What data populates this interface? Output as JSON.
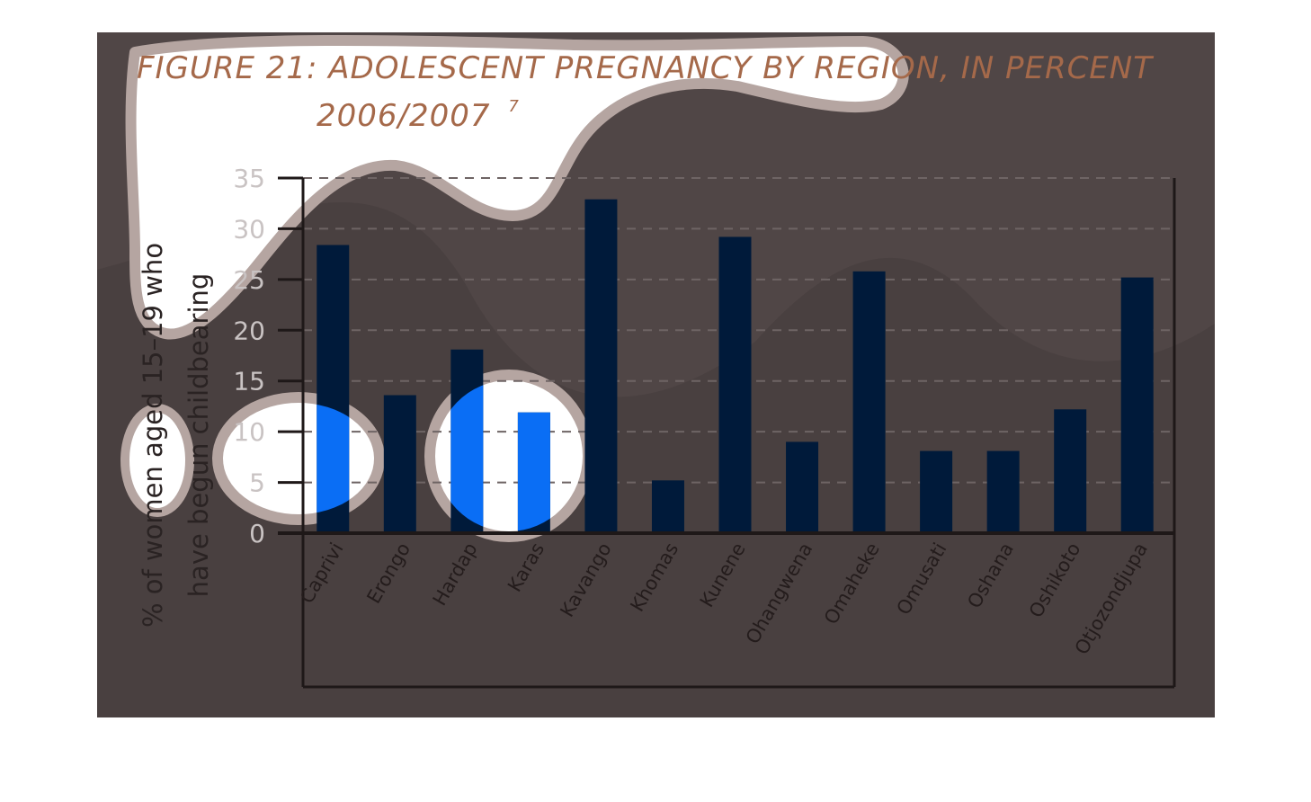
{
  "colors": {
    "panel": "#504646",
    "bar": "#001a3a",
    "bar_highlight": "#0a6ef5",
    "blob_fill": "#ffffff",
    "blob_edge": "#b5a5a1",
    "title": "#a5694a",
    "grid": "#6e6464",
    "axis": "#1e1818"
  },
  "chart_data": {
    "type": "bar",
    "title_line1": "FIGURE 21: ADOLESCENT PREGNANCY BY REGION, IN PERCENT",
    "title_line2": "2006/2007",
    "title_superscript": "7",
    "ylabel_line1": "% of women aged 15–19 who",
    "ylabel_line2": "have begun childbearing",
    "xlabel": "",
    "ylim": [
      0,
      35
    ],
    "yticks": [
      0,
      5,
      10,
      15,
      20,
      25,
      30,
      35
    ],
    "grid": true,
    "categories": [
      "Caprivi",
      "Erongo",
      "Hardap",
      "Karas",
      "Kavango",
      "Khomas",
      "Kunene",
      "Ohangwena",
      "Omaheke",
      "Omusati",
      "Oshana",
      "Oshikoto",
      "Otjozondjupa"
    ],
    "values": [
      28.4,
      13.6,
      18.1,
      11.9,
      32.9,
      5.2,
      29.2,
      9.0,
      25.8,
      8.1,
      8.1,
      12.2,
      25.2
    ]
  }
}
